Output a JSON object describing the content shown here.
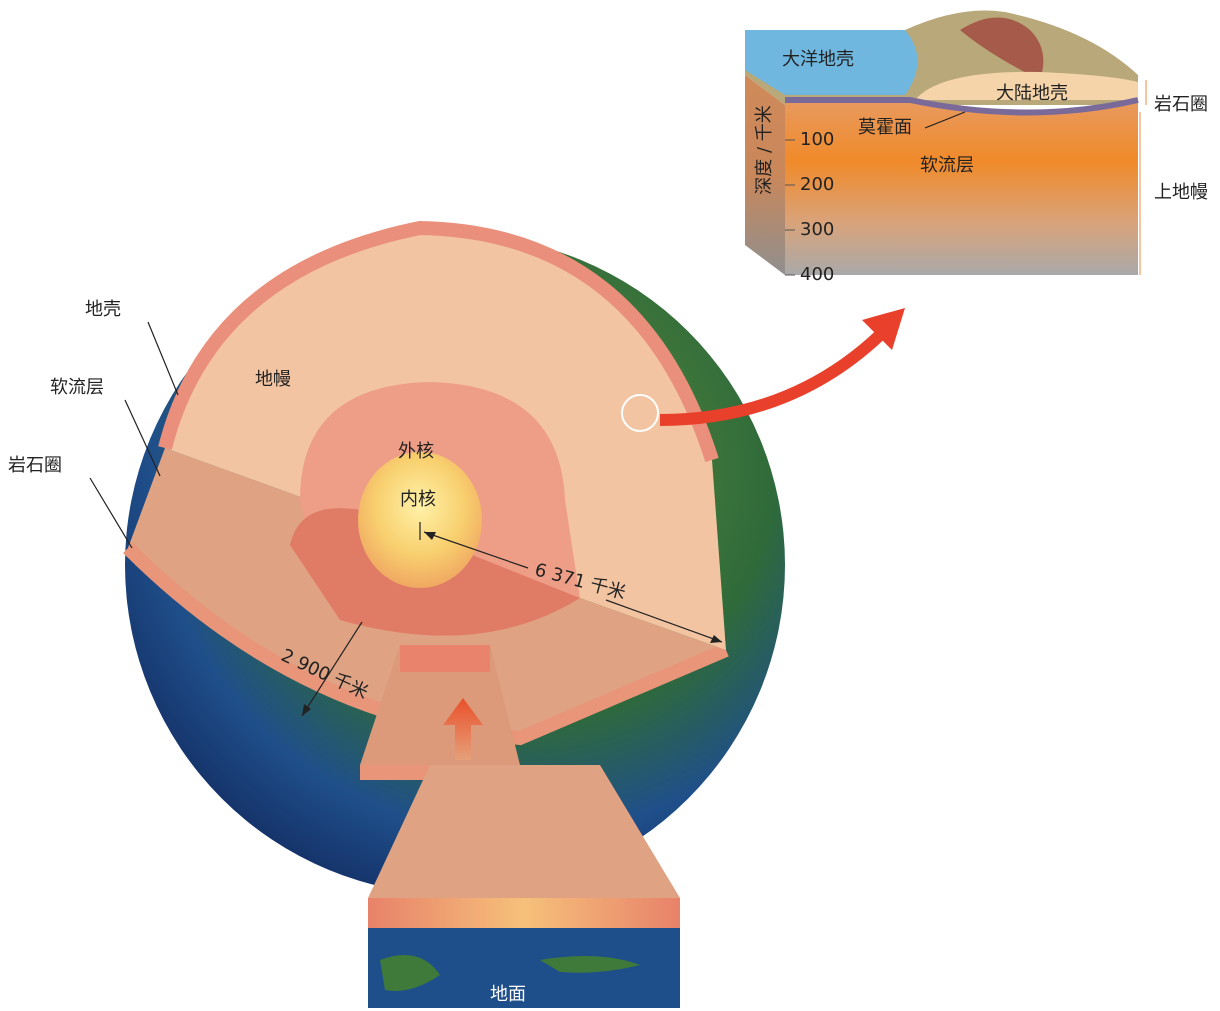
{
  "globe": {
    "crust": "地壳",
    "asthenosphere": "软流层",
    "lithosphere": "岩石圈",
    "mantle": "地幔",
    "outer_core": "外核",
    "inner_core": "内核",
    "radius": "6 371 千米",
    "core_depth": "2 900 千米",
    "ground": "地面"
  },
  "inset": {
    "oceanic_crust": "大洋地壳",
    "continental_crust": "大陆地壳",
    "moho": "莫霍面",
    "asthenosphere": "软流层",
    "lithosphere": "岩石圈",
    "upper_mantle": "上地幔",
    "depth_axis": "深度 / 千米",
    "depth_ticks": [
      100,
      200,
      300,
      400
    ]
  }
}
